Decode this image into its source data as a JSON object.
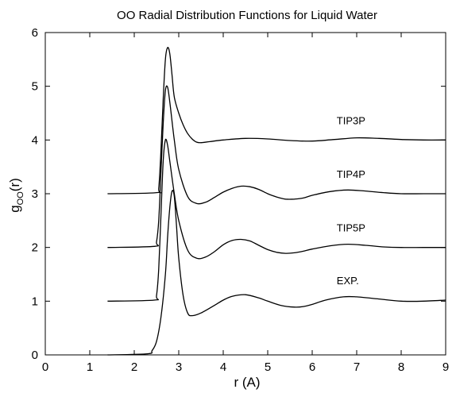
{
  "chart_data": {
    "type": "line",
    "title": "OO Radial Distribution Functions for Liquid Water",
    "xlabel": "r (A)",
    "ylabel": "g(r)",
    "ylabel_subscript": "OO",
    "xlim": [
      0,
      9
    ],
    "ylim": [
      0,
      6
    ],
    "xticks": [
      "0",
      "1",
      "2",
      "3",
      "4",
      "5",
      "6",
      "7",
      "8",
      "9"
    ],
    "yticks": [
      "0",
      "1",
      "2",
      "3",
      "4",
      "5",
      "6"
    ],
    "grid": false,
    "legend": "none (curves labeled directly)",
    "color": "#000000",
    "series": [
      {
        "name": "TIP3P",
        "label": "TIP3P",
        "x": [
          1.4,
          2.5,
          2.55,
          2.6,
          2.65,
          2.7,
          2.75,
          2.8,
          2.85,
          2.9,
          3.0,
          3.1,
          3.2,
          3.3,
          3.4,
          3.5,
          3.7,
          4.0,
          4.5,
          5.0,
          5.5,
          6.0,
          6.5,
          7.0,
          7.5,
          8.0,
          8.5,
          9.0
        ],
        "y": [
          3.0,
          3.02,
          3.1,
          3.8,
          4.75,
          5.5,
          5.72,
          5.6,
          5.2,
          4.8,
          4.5,
          4.28,
          4.12,
          4.02,
          3.96,
          3.95,
          3.97,
          4.0,
          4.03,
          4.02,
          3.99,
          3.98,
          4.01,
          4.04,
          4.03,
          4.01,
          4.0,
          4.0
        ]
      },
      {
        "name": "TIP4P",
        "label": "TIP4P",
        "x": [
          1.4,
          2.45,
          2.5,
          2.55,
          2.6,
          2.65,
          2.7,
          2.75,
          2.8,
          2.9,
          3.0,
          3.2,
          3.4,
          3.6,
          3.8,
          4.0,
          4.2,
          4.4,
          4.6,
          4.8,
          5.0,
          5.2,
          5.4,
          5.6,
          5.8,
          6.0,
          6.4,
          6.8,
          7.2,
          7.6,
          8.0,
          8.5,
          9.0
        ],
        "y": [
          2.0,
          2.02,
          2.1,
          2.5,
          3.4,
          4.3,
          4.92,
          4.98,
          4.7,
          4.0,
          3.45,
          2.95,
          2.82,
          2.84,
          2.93,
          3.03,
          3.1,
          3.14,
          3.13,
          3.08,
          3.0,
          2.94,
          2.9,
          2.9,
          2.92,
          2.97,
          3.04,
          3.07,
          3.05,
          3.02,
          3.0,
          3.0,
          3.0
        ]
      },
      {
        "name": "TIP5P",
        "label": "TIP5P",
        "x": [
          1.4,
          2.45,
          2.5,
          2.55,
          2.6,
          2.65,
          2.7,
          2.75,
          2.8,
          2.9,
          3.0,
          3.2,
          3.4,
          3.6,
          3.8,
          4.0,
          4.2,
          4.4,
          4.6,
          4.8,
          5.0,
          5.2,
          5.4,
          5.6,
          5.8,
          6.0,
          6.4,
          6.8,
          7.2,
          7.6,
          8.0,
          8.5,
          9.0
        ],
        "y": [
          1.0,
          1.02,
          1.1,
          1.6,
          2.6,
          3.6,
          4.0,
          3.9,
          3.6,
          3.0,
          2.5,
          1.95,
          1.8,
          1.82,
          1.92,
          2.05,
          2.13,
          2.15,
          2.12,
          2.04,
          1.96,
          1.91,
          1.89,
          1.9,
          1.93,
          1.97,
          2.03,
          2.06,
          2.04,
          2.01,
          2.0,
          2.0,
          2.0
        ]
      },
      {
        "name": "EXP.",
        "label": "EXP.",
        "x": [
          1.4,
          2.3,
          2.4,
          2.5,
          2.6,
          2.7,
          2.75,
          2.8,
          2.85,
          2.9,
          2.95,
          3.0,
          3.1,
          3.2,
          3.3,
          3.5,
          3.8,
          4.0,
          4.2,
          4.5,
          4.8,
          5.0,
          5.3,
          5.6,
          5.8,
          6.0,
          6.3,
          6.7,
          7.0,
          7.5,
          8.0,
          8.5,
          9.0
        ],
        "y": [
          0.0,
          0.02,
          0.08,
          0.25,
          0.7,
          1.5,
          2.2,
          2.75,
          3.05,
          2.95,
          2.4,
          1.8,
          1.1,
          0.78,
          0.73,
          0.78,
          0.92,
          1.02,
          1.09,
          1.12,
          1.06,
          1.0,
          0.92,
          0.89,
          0.9,
          0.94,
          1.02,
          1.08,
          1.08,
          1.04,
          1.0,
          1.0,
          1.02
        ]
      }
    ]
  }
}
